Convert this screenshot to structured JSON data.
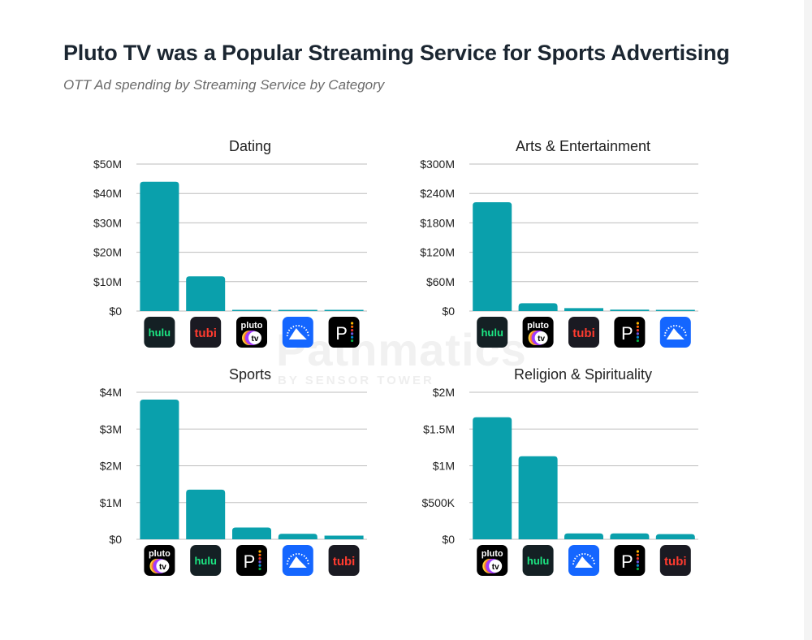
{
  "header": {
    "title": "Pluto TV was a Popular Streaming Service for Sports Advertising",
    "subtitle": "OTT Ad spending by Streaming Service by Category"
  },
  "watermark": {
    "brand": "Pathmatics",
    "tagline": "BY SENSOR TOWER"
  },
  "colors": {
    "bar": "#0aa0ac",
    "grid": "#bdbdbd"
  },
  "services": {
    "hulu": {
      "label": "hulu",
      "bg": "#142024",
      "fg": "#1ce783"
    },
    "tubi": {
      "label": "tubi",
      "bg": "#1a1a22",
      "fg": "#ff3b2f"
    },
    "pluto": {
      "label": "pluto tv",
      "bg": "#000000",
      "fg": "#ffffff"
    },
    "paramount": {
      "label": "paramount+",
      "bg": "#1466ff",
      "fg": "#ffffff"
    },
    "peacock": {
      "label": "peacock",
      "bg": "#000000",
      "fg": "#ffffff"
    }
  },
  "chart_data": [
    {
      "type": "bar",
      "title": "Dating",
      "categories": [
        "hulu",
        "tubi",
        "pluto",
        "paramount",
        "peacock"
      ],
      "values": [
        44000000,
        11800000,
        300000,
        200000,
        50000
      ],
      "yticks": [
        "$0",
        "$10M",
        "$20M",
        "$30M",
        "$40M",
        "$50M"
      ],
      "ylim": [
        0,
        50000000
      ],
      "xlabel": "",
      "ylabel": "",
      "grid": true
    },
    {
      "type": "bar",
      "title": "Arts & Entertainment",
      "categories": [
        "hulu",
        "pluto",
        "tubi",
        "peacock",
        "paramount"
      ],
      "values": [
        222000000,
        16000000,
        6000000,
        3000000,
        2000000
      ],
      "yticks": [
        "$0",
        "$60M",
        "$120M",
        "$180M",
        "$240M",
        "$300M"
      ],
      "ylim": [
        0,
        300000000
      ],
      "xlabel": "",
      "ylabel": "",
      "grid": true
    },
    {
      "type": "bar",
      "title": "Sports",
      "categories": [
        "pluto",
        "hulu",
        "peacock",
        "paramount",
        "tubi"
      ],
      "values": [
        3800000,
        1350000,
        320000,
        150000,
        100000
      ],
      "yticks": [
        "$0",
        "$1M",
        "$2M",
        "$3M",
        "$4M"
      ],
      "ylim": [
        0,
        4000000
      ],
      "xlabel": "",
      "ylabel": "",
      "grid": true
    },
    {
      "type": "bar",
      "title": "Religion & Spirituality",
      "categories": [
        "pluto",
        "hulu",
        "paramount",
        "peacock",
        "tubi"
      ],
      "values": [
        1660000,
        1130000,
        80000,
        80000,
        70000
      ],
      "yticks": [
        "$0",
        "$500K",
        "$1M",
        "$1.5M",
        "$2M"
      ],
      "ylim": [
        0,
        2000000
      ],
      "xlabel": "",
      "ylabel": "",
      "grid": true
    }
  ]
}
